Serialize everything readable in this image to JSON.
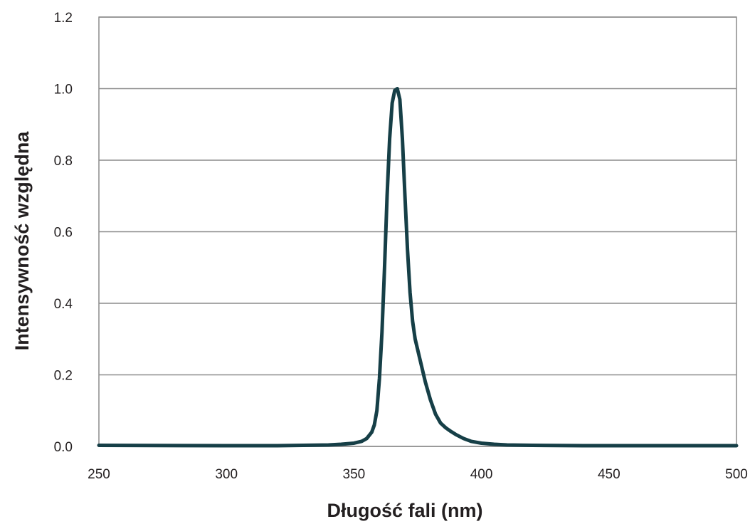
{
  "chart_data": {
    "type": "line",
    "title": "",
    "xlabel": "Długość fali (nm)",
    "ylabel": "Intensywność względna",
    "xlim": [
      250,
      500
    ],
    "ylim": [
      0,
      1.2
    ],
    "x_ticks": [
      "250",
      "300",
      "350",
      "400",
      "450",
      "500"
    ],
    "y_ticks": [
      "0.0",
      "0.2",
      "0.4",
      "0.6",
      "0.8",
      "1.0",
      "1.2"
    ],
    "grid": "horizontal",
    "legend": "none",
    "colors": {
      "line": "#163f47",
      "grid": "#8c8c8c",
      "frame": "#8c8c8c",
      "text": "#231f20"
    },
    "series": [
      {
        "x": [
          250,
          300,
          320,
          330,
          340,
          345,
          350,
          353,
          355,
          357,
          358,
          359,
          360,
          361,
          362,
          363,
          364,
          365,
          366,
          367,
          368,
          369,
          370,
          371,
          372,
          373,
          374,
          375,
          376,
          378,
          380,
          382,
          384,
          386,
          388,
          390,
          393,
          396,
          400,
          405,
          410,
          420,
          440,
          460,
          480,
          500
        ],
        "values": [
          0.003,
          0.002,
          0.002,
          0.003,
          0.004,
          0.006,
          0.009,
          0.014,
          0.022,
          0.04,
          0.06,
          0.1,
          0.19,
          0.32,
          0.5,
          0.7,
          0.86,
          0.96,
          0.995,
          1.0,
          0.97,
          0.86,
          0.7,
          0.55,
          0.43,
          0.35,
          0.3,
          0.27,
          0.24,
          0.18,
          0.13,
          0.09,
          0.065,
          0.052,
          0.042,
          0.033,
          0.022,
          0.014,
          0.009,
          0.006,
          0.004,
          0.003,
          0.002,
          0.002,
          0.002,
          0.002
        ]
      }
    ]
  }
}
